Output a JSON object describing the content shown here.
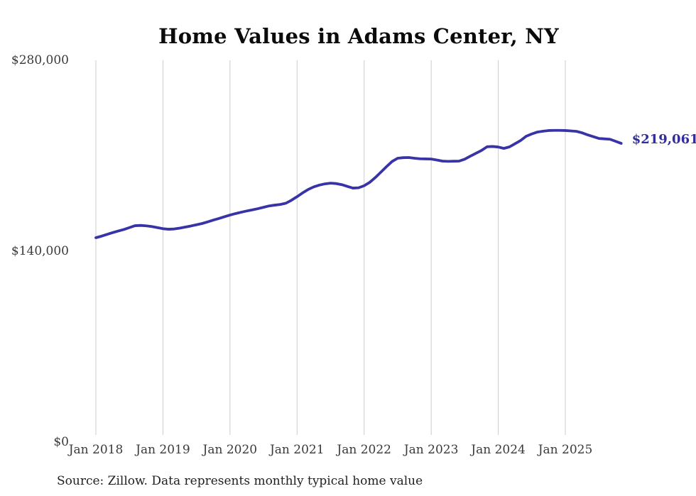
{
  "chart": {
    "title": "Home Values in Adams Center, NY",
    "end_label": "$219,061",
    "source": "Source: Zillow. Data represents monthly typical home value",
    "colors": {
      "line": "#3833a6",
      "end_label": "#312d9c",
      "grid": "#cccccc",
      "title_text": "#0b0b0b",
      "axis_text": "#3a3a3a",
      "source_text": "#1f1f1f",
      "background": "#ffffff"
    }
  },
  "chart_data": {
    "type": "line",
    "title": "Home Values in Adams Center, NY",
    "xlabel": "",
    "ylabel": "",
    "frequency": "monthly",
    "x_start": "2018-01",
    "x_end": "2025-11",
    "x_tick_labels": [
      "Jan 2018",
      "Jan 2019",
      "Jan 2020",
      "Jan 2021",
      "Jan 2022",
      "Jan 2023",
      "Jan 2024",
      "Jan 2025"
    ],
    "y_ticks": [
      {
        "label": "$280,000",
        "value": 280000
      },
      {
        "label": "$140,000",
        "value": 140000
      },
      {
        "label": "$0",
        "value": 0
      }
    ],
    "ylim": [
      0,
      280000
    ],
    "grid": "vertical-only",
    "legend": "none",
    "last_value": 219061,
    "last_value_label": "$219,061",
    "series": [
      {
        "name": "Typical home value",
        "values": [
          149900,
          151000,
          152300,
          153600,
          154800,
          155900,
          157300,
          158700,
          158900,
          158600,
          158100,
          157300,
          156500,
          156100,
          156300,
          156900,
          157700,
          158500,
          159400,
          160300,
          161500,
          162800,
          164000,
          165300,
          166500,
          167600,
          168600,
          169500,
          170300,
          171200,
          172200,
          173200,
          173800,
          174300,
          175200,
          177400,
          180000,
          182800,
          185300,
          187200,
          188500,
          189400,
          189900,
          189600,
          188800,
          187500,
          186300,
          186500,
          188000,
          190500,
          194000,
          198000,
          202000,
          205800,
          208200,
          208600,
          208700,
          208200,
          207800,
          207700,
          207600,
          206900,
          206100,
          205900,
          206000,
          206100,
          207500,
          209700,
          211800,
          213900,
          216600,
          216800,
          216400,
          215400,
          216500,
          218800,
          221200,
          224300,
          226000,
          227400,
          228000,
          228500,
          228600,
          228600,
          228500,
          228200,
          227900,
          226800,
          225300,
          224000,
          222700,
          222400,
          222100,
          220600,
          219061
        ]
      }
    ]
  }
}
